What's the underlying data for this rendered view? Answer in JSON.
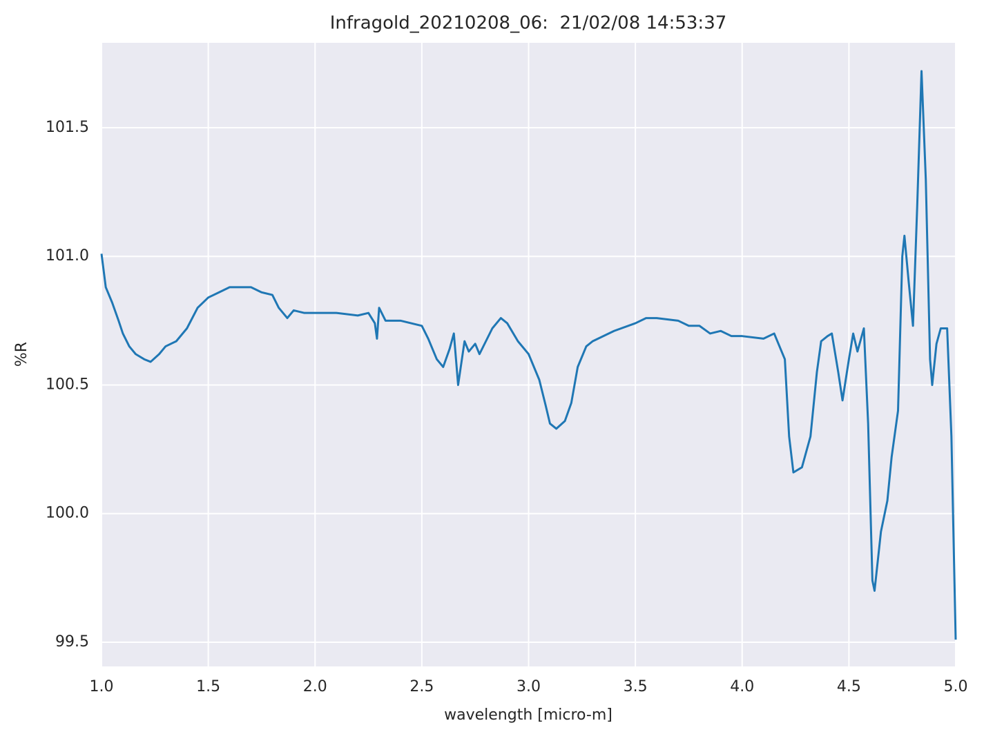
{
  "chart_data": {
    "type": "line",
    "title": "Infragold_20210208_06:  21/02/08 14:53:37",
    "x_label": "wavelength [micro-m]",
    "y_label": "%R",
    "x": [
      1.0,
      1.02,
      1.05,
      1.08,
      1.1,
      1.13,
      1.16,
      1.2,
      1.23,
      1.27,
      1.3,
      1.35,
      1.4,
      1.45,
      1.5,
      1.55,
      1.6,
      1.65,
      1.7,
      1.75,
      1.8,
      1.83,
      1.87,
      1.9,
      1.95,
      2.0,
      2.1,
      2.2,
      2.25,
      2.28,
      2.29,
      2.3,
      2.33,
      2.4,
      2.45,
      2.5,
      2.53,
      2.57,
      2.6,
      2.63,
      2.65,
      2.67,
      2.7,
      2.72,
      2.75,
      2.77,
      2.8,
      2.83,
      2.87,
      2.9,
      2.95,
      3.0,
      3.05,
      3.08,
      3.1,
      3.13,
      3.17,
      3.2,
      3.23,
      3.27,
      3.3,
      3.4,
      3.5,
      3.55,
      3.6,
      3.7,
      3.75,
      3.8,
      3.85,
      3.9,
      3.95,
      4.0,
      4.1,
      4.15,
      4.2,
      4.22,
      4.24,
      4.28,
      4.32,
      4.35,
      4.37,
      4.4,
      4.42,
      4.45,
      4.47,
      4.5,
      4.52,
      4.54,
      4.57,
      4.59,
      4.61,
      4.62,
      4.65,
      4.68,
      4.7,
      4.73,
      4.75,
      4.76,
      4.78,
      4.8,
      4.82,
      4.84,
      4.86,
      4.88,
      4.89,
      4.91,
      4.93,
      4.96,
      4.98,
      5.0
    ],
    "series": [
      {
        "name": "%R",
        "color": "#1f77b4",
        "values": [
          101.01,
          100.88,
          100.82,
          100.75,
          100.7,
          100.65,
          100.62,
          100.6,
          100.59,
          100.62,
          100.65,
          100.67,
          100.72,
          100.8,
          100.84,
          100.86,
          100.88,
          100.88,
          100.88,
          100.86,
          100.85,
          100.8,
          100.76,
          100.79,
          100.78,
          100.78,
          100.78,
          100.77,
          100.78,
          100.74,
          100.68,
          100.8,
          100.75,
          100.75,
          100.74,
          100.73,
          100.68,
          100.6,
          100.57,
          100.64,
          100.7,
          100.5,
          100.67,
          100.63,
          100.66,
          100.62,
          100.67,
          100.72,
          100.76,
          100.74,
          100.67,
          100.62,
          100.52,
          100.42,
          100.35,
          100.33,
          100.36,
          100.43,
          100.57,
          100.65,
          100.67,
          100.71,
          100.74,
          100.76,
          100.76,
          100.75,
          100.73,
          100.73,
          100.7,
          100.71,
          100.69,
          100.69,
          100.68,
          100.7,
          100.6,
          100.3,
          100.16,
          100.18,
          100.3,
          100.55,
          100.67,
          100.69,
          100.7,
          100.55,
          100.44,
          100.6,
          100.7,
          100.63,
          100.72,
          100.35,
          99.74,
          99.7,
          99.93,
          100.05,
          100.22,
          100.4,
          101.0,
          101.08,
          100.9,
          100.73,
          101.2,
          101.72,
          101.3,
          100.6,
          100.5,
          100.66,
          100.72,
          100.72,
          100.3,
          99.51
        ]
      }
    ],
    "xlim": [
      1.0,
      5.0
    ],
    "ylim": [
      99.406,
      101.83
    ],
    "xticks": [
      {
        "value": 1,
        "label": "1.0"
      },
      1.5,
      {
        "value": 2,
        "label": "2.0"
      },
      2.5,
      {
        "value": 3,
        "label": "3.0"
      },
      3.5,
      {
        "value": 4,
        "label": "4.0"
      },
      4.5,
      {
        "value": 5,
        "label": "5.0"
      }
    ],
    "yticks": [
      99.5,
      {
        "value": 100,
        "label": "100.0"
      },
      100.5,
      {
        "value": 101,
        "label": "101.0"
      },
      101.5
    ],
    "grid": true
  }
}
